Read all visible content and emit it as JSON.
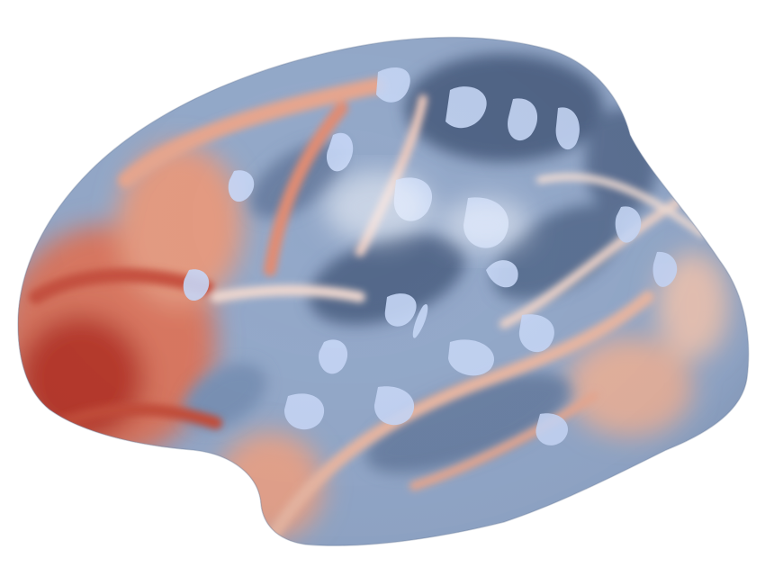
{
  "image": {
    "subject": "inflated-cortical-surface",
    "view": "lateral-left-hemisphere",
    "background_color": "#ffffff",
    "colormap": {
      "name": "diverging-blue-red",
      "low": "#4a5f80",
      "mid_low": "#8fa4c6",
      "neutral": "#e9eef6",
      "mid_high": "#e9a084",
      "high": "#b8382b",
      "highlight": "#c6d6f6"
    }
  }
}
